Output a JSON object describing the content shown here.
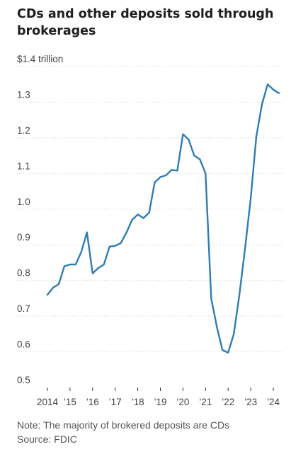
{
  "title": "CDs and other deposits sold through brokerages",
  "note": "Note: The majority of brokered deposits are CDs",
  "source": "Source: FDIC",
  "colors": {
    "line": "#2e7db5",
    "grid": "#d9d9d9",
    "text": "#444444"
  },
  "chart_data": {
    "type": "line",
    "title": "CDs and other deposits sold through brokerages",
    "xlabel": "",
    "ylabel": "",
    "ylim": [
      0.5,
      1.4
    ],
    "xlim": [
      2014,
      2024.5
    ],
    "grid": "horizontal dotted",
    "y_ticks": [
      {
        "value": 1.4,
        "label": "$1.4 trillion"
      },
      {
        "value": 1.3,
        "label": "1.3"
      },
      {
        "value": 1.2,
        "label": "1.2"
      },
      {
        "value": 1.1,
        "label": "1.1"
      },
      {
        "value": 1.0,
        "label": "1.0"
      },
      {
        "value": 0.9,
        "label": "0.9"
      },
      {
        "value": 0.8,
        "label": "0.8"
      },
      {
        "value": 0.7,
        "label": "0.7"
      },
      {
        "value": 0.6,
        "label": "0.6"
      },
      {
        "value": 0.5,
        "label": "0.5"
      }
    ],
    "x_ticks": [
      {
        "value": 2014,
        "label": "2014"
      },
      {
        "value": 2015,
        "label": "’15"
      },
      {
        "value": 2016,
        "label": "’16"
      },
      {
        "value": 2017,
        "label": "’17"
      },
      {
        "value": 2018,
        "label": "’18"
      },
      {
        "value": 2019,
        "label": "’19"
      },
      {
        "value": 2020,
        "label": "’20"
      },
      {
        "value": 2021,
        "label": "’21"
      },
      {
        "value": 2022,
        "label": "’22"
      },
      {
        "value": 2023,
        "label": "’23"
      },
      {
        "value": 2024,
        "label": "’24"
      }
    ],
    "series": [
      {
        "values": [
          [
            2014.0,
            0.76
          ],
          [
            2014.25,
            0.78
          ],
          [
            2014.5,
            0.79
          ],
          [
            2014.75,
            0.84
          ],
          [
            2015.0,
            0.845
          ],
          [
            2015.25,
            0.845
          ],
          [
            2015.5,
            0.88
          ],
          [
            2015.75,
            0.935
          ],
          [
            2016.0,
            0.82
          ],
          [
            2016.25,
            0.835
          ],
          [
            2016.5,
            0.845
          ],
          [
            2016.75,
            0.895
          ],
          [
            2017.0,
            0.897
          ],
          [
            2017.25,
            0.905
          ],
          [
            2017.5,
            0.935
          ],
          [
            2017.75,
            0.97
          ],
          [
            2018.0,
            0.985
          ],
          [
            2018.25,
            0.975
          ],
          [
            2018.5,
            0.99
          ],
          [
            2018.75,
            1.075
          ],
          [
            2019.0,
            1.09
          ],
          [
            2019.25,
            1.095
          ],
          [
            2019.5,
            1.11
          ],
          [
            2019.75,
            1.108
          ],
          [
            2020.0,
            1.21
          ],
          [
            2020.25,
            1.195
          ],
          [
            2020.5,
            1.15
          ],
          [
            2020.75,
            1.14
          ],
          [
            2021.0,
            1.1
          ],
          [
            2021.25,
            0.75
          ],
          [
            2021.5,
            0.67
          ],
          [
            2021.75,
            0.605
          ],
          [
            2022.0,
            0.598
          ],
          [
            2022.25,
            0.65
          ],
          [
            2022.5,
            0.76
          ],
          [
            2022.75,
            0.89
          ],
          [
            2023.0,
            1.03
          ],
          [
            2023.25,
            1.205
          ],
          [
            2023.5,
            1.295
          ],
          [
            2023.75,
            1.35
          ],
          [
            2024.0,
            1.335
          ],
          [
            2024.25,
            1.325
          ]
        ]
      }
    ]
  }
}
